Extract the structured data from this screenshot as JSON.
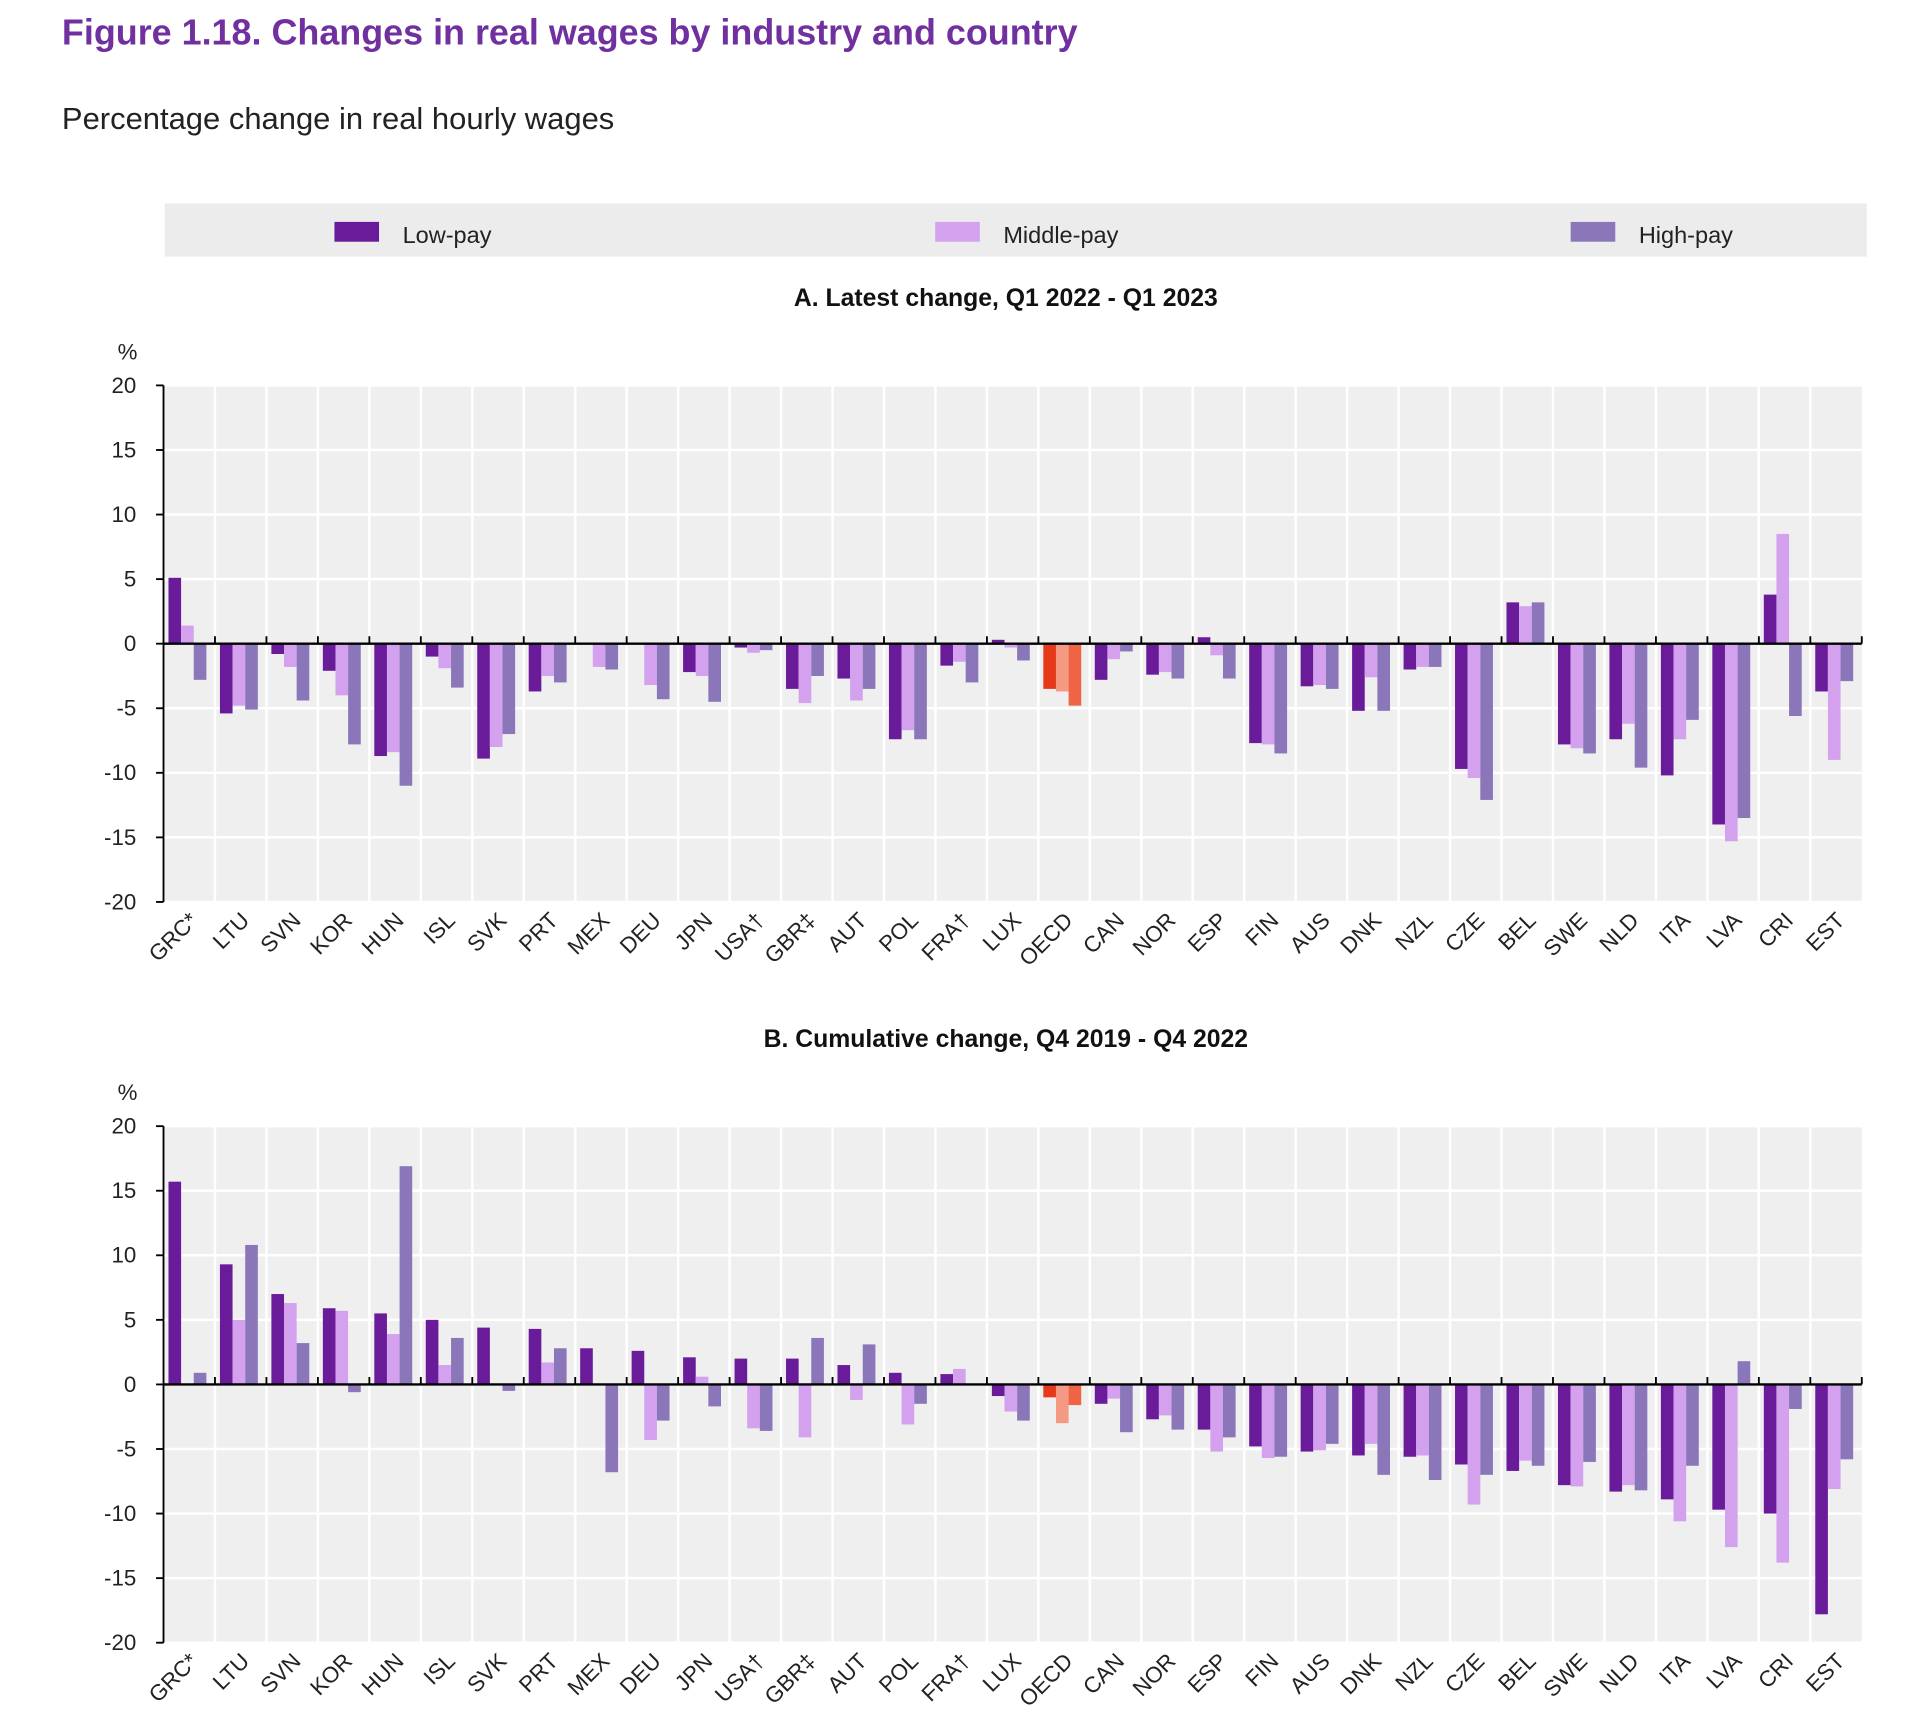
{
  "header": {
    "title": "Figure 1.18. Changes in real wages by industry and country",
    "subtitle": "Percentage change in real hourly wages"
  },
  "chart_data": [
    {
      "type": "bar",
      "title": "A. Latest change, Q1 2022 - Q1 2023",
      "ylabel": "%",
      "ylim": [
        -20,
        20
      ],
      "yticks": [
        20,
        15,
        10,
        5,
        0,
        -5,
        -10,
        -15,
        -20
      ],
      "grid": true,
      "legend_position": "top",
      "categories": [
        "GRC*",
        "LTU",
        "SVN",
        "KOR",
        "HUN",
        "ISL",
        "SVK",
        "PRT",
        "MEX",
        "DEU",
        "JPN",
        "USA†",
        "GBR‡",
        "AUT",
        "POL",
        "FRA†",
        "LUX",
        "OECD",
        "CAN",
        "NOR",
        "ESP",
        "FIN",
        "AUS",
        "DNK",
        "NZL",
        "CZE",
        "BEL",
        "SWE",
        "NLD",
        "ITA",
        "LVA",
        "CRI",
        "EST"
      ],
      "highlight_category": "OECD",
      "series": [
        {
          "name": "Low-pay",
          "values": [
            5.1,
            -5.4,
            -0.8,
            -2.1,
            -8.7,
            -1.0,
            -8.9,
            -3.7,
            0,
            0,
            -2.2,
            -0.3,
            -3.5,
            -2.7,
            -7.4,
            -1.7,
            0.3,
            -3.5,
            -2.8,
            -2.4,
            0.5,
            -7.7,
            -3.3,
            -5.2,
            -2.0,
            -9.7,
            3.2,
            -7.8,
            -7.4,
            -10.2,
            -14.0,
            3.8,
            -3.7
          ]
        },
        {
          "name": "Middle-pay",
          "values": [
            1.4,
            -4.8,
            -1.8,
            -4.0,
            -8.4,
            -1.9,
            -8.0,
            -2.5,
            -1.8,
            -3.2,
            -2.5,
            -0.7,
            -4.6,
            -4.4,
            -6.7,
            -1.4,
            -0.3,
            -3.7,
            -1.2,
            -2.2,
            -0.9,
            -7.8,
            -3.2,
            -2.6,
            -1.8,
            -10.4,
            2.9,
            -8.1,
            -6.2,
            -7.4,
            -15.3,
            8.5,
            -9.0
          ]
        },
        {
          "name": "High-pay",
          "values": [
            -2.8,
            -5.1,
            -4.4,
            -7.8,
            -11.0,
            -3.4,
            -7.0,
            -3.0,
            -2.0,
            -4.3,
            -4.5,
            -0.5,
            -2.5,
            -3.5,
            -7.4,
            -3.0,
            -1.3,
            -4.8,
            -0.6,
            -2.7,
            -2.7,
            -8.5,
            -3.5,
            -5.2,
            -1.8,
            -12.1,
            3.2,
            -8.5,
            -9.6,
            -5.9,
            -13.5,
            -5.6,
            -2.9
          ]
        }
      ]
    },
    {
      "type": "bar",
      "title": "B. Cumulative change, Q4 2019 - Q4 2022",
      "ylabel": "%",
      "ylim": [
        -20,
        20
      ],
      "yticks": [
        20,
        15,
        10,
        5,
        0,
        -5,
        -10,
        -15,
        -20
      ],
      "grid": true,
      "categories": [
        "GRC*",
        "LTU",
        "SVN",
        "KOR",
        "HUN",
        "ISL",
        "SVK",
        "PRT",
        "MEX",
        "DEU",
        "JPN",
        "USA†",
        "GBR‡",
        "AUT",
        "POL",
        "FRA†",
        "LUX",
        "OECD",
        "CAN",
        "NOR",
        "ESP",
        "FIN",
        "AUS",
        "DNK",
        "NZL",
        "CZE",
        "BEL",
        "SWE",
        "NLD",
        "ITA",
        "LVA",
        "CRI",
        "EST"
      ],
      "highlight_category": "OECD",
      "series": [
        {
          "name": "Low-pay",
          "values": [
            15.7,
            9.3,
            7.0,
            5.9,
            5.5,
            5.0,
            4.4,
            4.3,
            2.8,
            2.6,
            2.1,
            2.0,
            2.0,
            1.5,
            0.9,
            0.8,
            -0.9,
            -1.0,
            -1.5,
            -2.7,
            -3.5,
            -4.8,
            -5.2,
            -5.5,
            -5.6,
            -6.2,
            -6.7,
            -7.8,
            -8.3,
            -8.9,
            -9.7,
            -10.0,
            -17.8
          ]
        },
        {
          "name": "Middle-pay",
          "values": [
            0,
            5.0,
            6.3,
            5.7,
            3.9,
            1.5,
            0,
            1.7,
            0,
            -4.3,
            0.6,
            -3.4,
            -4.1,
            -1.2,
            -3.1,
            1.2,
            -2.1,
            -3.0,
            -1.1,
            -2.4,
            -5.2,
            -5.7,
            -5.1,
            -4.6,
            -5.5,
            -9.3,
            -5.9,
            -7.9,
            -7.8,
            -10.6,
            -12.6,
            -13.8,
            -8.1
          ]
        },
        {
          "name": "High-pay",
          "values": [
            0.9,
            10.8,
            3.2,
            -0.6,
            16.9,
            3.6,
            -0.5,
            2.8,
            -6.8,
            -2.8,
            -1.7,
            -3.6,
            3.6,
            3.1,
            -1.5,
            0,
            -2.8,
            -1.6,
            -3.7,
            -3.5,
            -4.1,
            -5.6,
            -4.6,
            -7.0,
            -7.4,
            -7.0,
            -6.3,
            -6.0,
            -8.2,
            -6.3,
            1.8,
            -1.9,
            -5.8
          ]
        }
      ]
    }
  ],
  "legend": [
    {
      "label": "Low-pay",
      "color": "#6a1b9a"
    },
    {
      "label": "Middle-pay",
      "color": "#d3a1ee"
    },
    {
      "label": "High-pay",
      "color": "#8a76b8"
    }
  ],
  "colors": {
    "low": "#6a1b9a",
    "middle": "#d3a1ee",
    "high": "#8a76b8",
    "oecd_low": "#e5391a",
    "oecd_middle": "#f59a82",
    "oecd_high": "#ee6444",
    "plot_bg": "#efefef",
    "legend_bg": "#ececec"
  }
}
